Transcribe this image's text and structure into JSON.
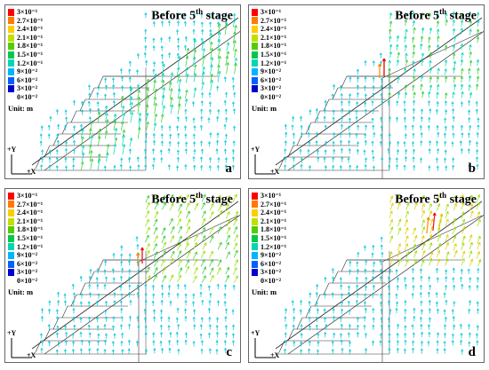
{
  "legend": {
    "colors": [
      "#ff0000",
      "#ff7a00",
      "#ffcc00",
      "#bfe000",
      "#55cc00",
      "#00c84a",
      "#00d6b4",
      "#00b4ff",
      "#0060ff",
      "#0000cc"
    ],
    "labels": [
      "3×10⁻¹",
      "2.7×10⁻¹",
      "2.4×10⁻¹",
      "2.1×10⁻¹",
      "1.8×10⁻¹",
      "1.5×10⁻¹",
      "1.2×10⁻¹",
      "9×10⁻²",
      "6×10⁻²",
      "3×10⁻²",
      "0×10⁻²"
    ],
    "unit": "Unit: m"
  },
  "axis": {
    "y": "+Y",
    "x": "+X"
  },
  "panels": [
    {
      "title_pre": "Before 5",
      "title_sup": "th",
      "title_post": " stage",
      "letter": "a"
    },
    {
      "title_pre": "Before 5",
      "title_sup": "th",
      "title_post": " stage",
      "letter": "b"
    },
    {
      "title_pre": "Before 5",
      "title_sup": "th",
      "title_post": " stage",
      "letter": "c"
    },
    {
      "title_pre": "Before 5",
      "title_sup": "th",
      "title_post": " stage",
      "letter": "d"
    }
  ]
}
